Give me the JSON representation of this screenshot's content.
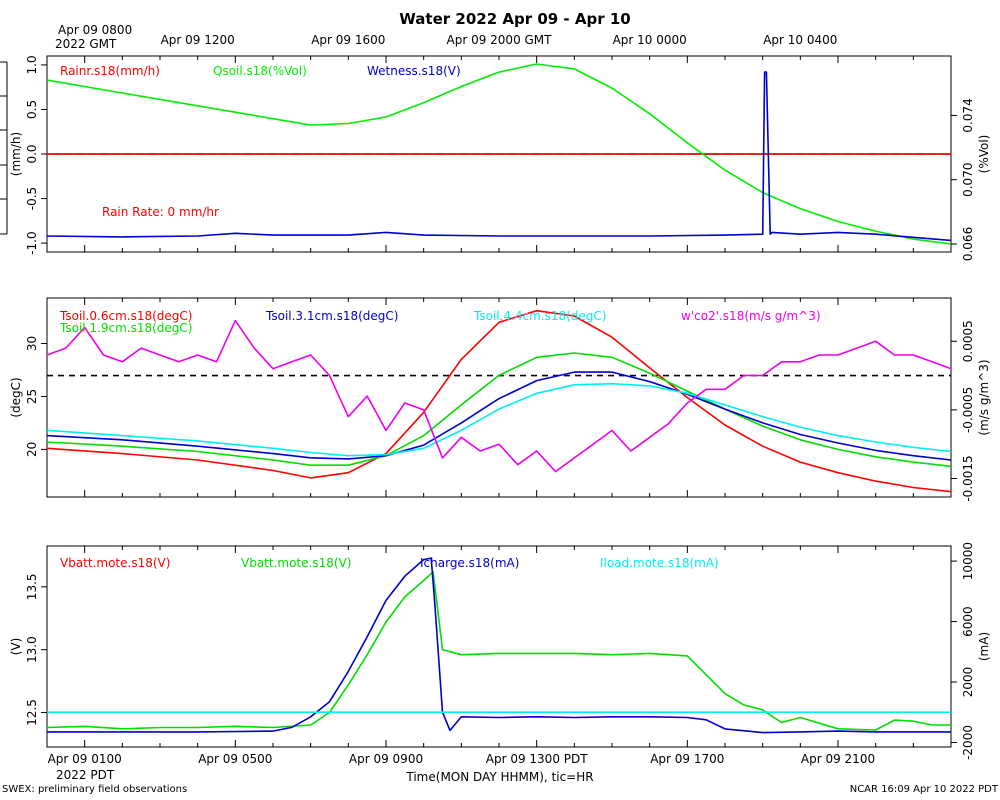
{
  "title": "Water 2022 Apr 09 - Apr 10",
  "top_time_labels": [
    {
      "t": 0,
      "line1": "Apr 09 0800",
      "line2": "2022 GMT"
    },
    {
      "t": 4,
      "line1": "Apr 09 1200",
      "line2": ""
    },
    {
      "t": 8,
      "line1": "Apr 09 1600",
      "line2": ""
    },
    {
      "t": 12,
      "line1": "Apr 09 2000 GMT",
      "line2": ""
    },
    {
      "t": 16,
      "line1": "Apr 10 0000",
      "line2": ""
    },
    {
      "t": 20,
      "line1": "Apr 10 0400",
      "line2": ""
    }
  ],
  "bottom_time_labels": [
    {
      "t": 1,
      "line1": "Apr 09 0100",
      "line2": "2022 PDT"
    },
    {
      "t": 5,
      "line1": "Apr 09 0500",
      "line2": ""
    },
    {
      "t": 9,
      "line1": "Apr 09 0900",
      "line2": ""
    },
    {
      "t": 13,
      "line1": "Apr 09 1300 PDT",
      "line2": ""
    },
    {
      "t": 17,
      "line1": "Apr 09 1700",
      "line2": ""
    },
    {
      "t": 21,
      "line1": "Apr 09 2100",
      "line2": ""
    }
  ],
  "xlabel": "Time(MON DAY HHMM), tic=HR",
  "footer_left": "SWEX: preliminary field observations",
  "footer_right": "NCAR 16:09 Apr 10 2022 PDT",
  "chart_data": [
    {
      "type": "line",
      "panel": "rain-soil-moisture",
      "x_range_hours": [
        0,
        24
      ],
      "left_axis": {
        "label": "(mm/h)",
        "ylim": [
          -1.1,
          1.1
        ],
        "ticks": [
          1.0,
          0.5,
          0.0,
          -0.5,
          -1.0
        ],
        "tick_labels": [
          "1.0",
          "0.5",
          "0.0",
          "-0.5",
          "-1.0"
        ]
      },
      "right_axis": {
        "label": "(%Vol)",
        "ylim": [
          0.0655,
          0.0777
        ],
        "ticks": [
          0.074,
          0.07,
          0.066
        ],
        "tick_labels": [
          "0.074",
          "0.070",
          "0.066"
        ]
      },
      "annotation": "Rain Rate: 0 mm/hr",
      "reference_lines": [
        {
          "axis": "left",
          "value": 0.0,
          "colors": [
            "#ff0000",
            "#000000"
          ]
        }
      ],
      "series": [
        {
          "name": "Rainr.s18(mm/h)",
          "color": "#ff0000",
          "axis": "left",
          "x": [
            0,
            24
          ],
          "values": [
            0.0,
            0.0
          ]
        },
        {
          "name": "Qsoil.s18(%Vol)",
          "color": "#00ee00",
          "axis": "right",
          "x": [
            0,
            2,
            4,
            6,
            7,
            8,
            9,
            10,
            11,
            12,
            13,
            14,
            15,
            16,
            17,
            18,
            19,
            20,
            21,
            22,
            23,
            24
          ],
          "values": [
            0.0762,
            0.0754,
            0.0746,
            0.0738,
            0.0734,
            0.0735,
            0.0739,
            0.0748,
            0.0758,
            0.0767,
            0.0772,
            0.0769,
            0.0757,
            0.0741,
            0.0723,
            0.0706,
            0.0692,
            0.0682,
            0.0674,
            0.0668,
            0.0663,
            0.066
          ]
        },
        {
          "name": "Wetness.s18(V)",
          "color": "#0000cc",
          "axis": "left",
          "x": [
            0,
            2,
            4,
            5,
            6,
            8,
            9,
            10,
            12,
            14,
            16,
            18,
            19.0,
            19.05,
            19.1,
            19.2,
            19.25,
            20,
            21,
            22,
            24
          ],
          "values": [
            -0.92,
            -0.93,
            -0.92,
            -0.89,
            -0.91,
            -0.91,
            -0.88,
            -0.91,
            -0.92,
            -0.92,
            -0.92,
            -0.91,
            -0.9,
            0.92,
            0.92,
            -0.9,
            -0.88,
            -0.9,
            -0.88,
            -0.9,
            -0.97
          ]
        }
      ]
    },
    {
      "type": "line",
      "panel": "soil-temperature-co2",
      "x_range_hours": [
        0,
        24
      ],
      "left_axis": {
        "label": "(degC)",
        "ylim": [
          15.5,
          34.3
        ],
        "ticks": [
          30,
          25,
          20
        ],
        "tick_labels": [
          "30",
          "25",
          "20"
        ]
      },
      "right_axis": {
        "label": "(m/s g/m^3)",
        "ylim": [
          -0.00177,
          0.00113
        ],
        "ticks": [
          0.0005,
          -0.0005,
          -0.0015
        ],
        "tick_labels": [
          "0.0005",
          "-0.0005",
          "-0.0015"
        ]
      },
      "reference_lines": [
        {
          "axis": "right",
          "value": 0.0,
          "colors": [
            "#000000"
          ]
        }
      ],
      "series": [
        {
          "name": "Tsoil.0.6cm.s18(degC)",
          "color": "#ff0000",
          "axis": "left",
          "x": [
            0,
            2,
            4,
            6,
            7,
            8,
            9,
            10,
            11,
            12,
            13,
            14,
            15,
            16,
            17,
            18,
            19,
            20,
            21,
            22,
            23,
            24
          ],
          "values": [
            20.1,
            19.6,
            19.0,
            18.0,
            17.3,
            17.8,
            19.6,
            23.5,
            28.5,
            32.0,
            33.1,
            32.6,
            30.6,
            27.7,
            24.9,
            22.3,
            20.3,
            18.8,
            17.8,
            17.0,
            16.4,
            16.0
          ]
        },
        {
          "name": "Tsoil.1.9cm.s18(degC)",
          "color": "#00dd00",
          "axis": "left",
          "x": [
            0,
            2,
            4,
            6,
            7,
            8,
            9,
            10,
            11,
            12,
            13,
            14,
            15,
            16,
            17,
            18,
            19,
            20,
            21,
            22,
            23,
            24
          ],
          "values": [
            20.7,
            20.3,
            19.8,
            19.0,
            18.5,
            18.5,
            19.4,
            21.3,
            24.2,
            27.0,
            28.7,
            29.1,
            28.7,
            27.2,
            25.5,
            23.8,
            22.2,
            20.9,
            20.0,
            19.3,
            18.8,
            18.4
          ]
        },
        {
          "name": "Tsoil.3.1cm.s18(degC)",
          "color": "#0000cc",
          "axis": "left",
          "x": [
            0,
            2,
            4,
            6,
            7,
            8,
            9,
            10,
            11,
            12,
            13,
            14,
            15,
            16,
            17,
            18,
            19,
            20,
            21,
            22,
            23,
            24
          ],
          "values": [
            21.3,
            20.9,
            20.3,
            19.6,
            19.2,
            19.1,
            19.4,
            20.4,
            22.5,
            24.8,
            26.5,
            27.3,
            27.3,
            26.4,
            25.2,
            23.8,
            22.5,
            21.4,
            20.6,
            19.9,
            19.4,
            19.0
          ]
        },
        {
          "name": "Tsoil.4.4cm.s18(degC)",
          "color": "#00eeee",
          "axis": "left",
          "x": [
            0,
            2,
            4,
            6,
            7,
            8,
            9,
            10,
            11,
            12,
            13,
            14,
            15,
            16,
            17,
            18,
            19,
            20,
            21,
            22,
            23,
            24
          ],
          "values": [
            21.8,
            21.3,
            20.8,
            20.1,
            19.7,
            19.4,
            19.5,
            20.1,
            21.8,
            23.8,
            25.3,
            26.1,
            26.2,
            26.0,
            25.3,
            24.2,
            23.1,
            22.1,
            21.3,
            20.7,
            20.2,
            19.8
          ]
        },
        {
          "name": "w'co2'.s18(m/s g/m^3)",
          "color": "#ee00ee",
          "axis": "right",
          "x": [
            0,
            0.5,
            1,
            1.5,
            2,
            2.5,
            3,
            3.5,
            4,
            4.5,
            5,
            5.5,
            6,
            6.5,
            7,
            7.5,
            8,
            8.5,
            9,
            9.5,
            10,
            10.5,
            11,
            11.5,
            12,
            12.5,
            13,
            13.5,
            14,
            14.5,
            15,
            15.5,
            16,
            16.5,
            17,
            17.5,
            18,
            18.5,
            19,
            19.5,
            20,
            20.5,
            21,
            21.5,
            22,
            22.5,
            23,
            23.5,
            24
          ],
          "values": [
            0.0003,
            0.0004,
            0.0007,
            0.0003,
            0.0002,
            0.0004,
            0.0003,
            0.0002,
            0.0003,
            0.0002,
            0.0008,
            0.0004,
            0.0001,
            0.0002,
            0.0003,
            0.0,
            -0.0006,
            -0.0003,
            -0.0008,
            -0.0004,
            -0.0005,
            -0.0012,
            -0.0009,
            -0.0011,
            -0.001,
            -0.0013,
            -0.0011,
            -0.0014,
            -0.0012,
            -0.001,
            -0.0008,
            -0.0011,
            -0.0009,
            -0.0007,
            -0.0004,
            -0.0002,
            -0.0002,
            0.0,
            0.0,
            0.0002,
            0.0002,
            0.0003,
            0.0003,
            0.0004,
            0.0005,
            0.0003,
            0.0003,
            0.0002,
            0.0001
          ]
        }
      ]
    },
    {
      "type": "line",
      "panel": "battery-power",
      "x_range_hours": [
        0,
        24
      ],
      "left_axis": {
        "label": "(V)",
        "ylim": [
          12.225,
          13.825
        ],
        "ticks": [
          13.5,
          13.0,
          12.5
        ],
        "tick_labels": [
          "13.5",
          "13.0",
          "12.5"
        ]
      },
      "right_axis": {
        "label": "(mA)",
        "ylim": [
          -2300,
          11000
        ],
        "ticks": [
          10000,
          6000,
          2000,
          -2000
        ],
        "tick_labels": [
          "10000",
          "6000",
          "2000",
          "-2000"
        ]
      },
      "reference_lines": [
        {
          "axis": "right",
          "value": 0,
          "colors": [
            "#00eeee",
            "#000000"
          ]
        }
      ],
      "series": [
        {
          "name": "Vbatt.mote.s18(V)",
          "color": "#ff0000",
          "axis": "left",
          "x": [],
          "values": []
        },
        {
          "name": "Vbatt.mote.s18(V)",
          "color": "#00dd00",
          "axis": "left",
          "x": [
            0,
            1,
            2,
            3,
            4,
            5,
            6,
            7,
            7.5,
            8,
            8.5,
            9,
            9.5,
            10,
            10.25,
            10.5,
            11,
            12,
            13,
            14,
            15,
            16,
            17,
            17.5,
            18,
            18.5,
            19,
            19.5,
            20,
            21,
            22,
            22.5,
            23,
            23.5,
            24
          ],
          "values": [
            12.38,
            12.39,
            12.37,
            12.38,
            12.38,
            12.39,
            12.38,
            12.4,
            12.5,
            12.72,
            12.96,
            13.22,
            13.42,
            13.55,
            13.62,
            13.0,
            12.96,
            12.97,
            12.97,
            12.97,
            12.96,
            12.97,
            12.95,
            12.8,
            12.65,
            12.56,
            12.52,
            12.42,
            12.46,
            12.37,
            12.36,
            12.44,
            12.43,
            12.4,
            12.4
          ]
        },
        {
          "name": "Icharge.s18(mA)",
          "color": "#0000cc",
          "axis": "right",
          "x": [
            0,
            2,
            4,
            6,
            6.5,
            7,
            7.5,
            8,
            8.5,
            9,
            9.5,
            10,
            10.2,
            10.3,
            10.5,
            10.7,
            11,
            12,
            13,
            14,
            15,
            16,
            17,
            17.5,
            18,
            19,
            20,
            21,
            22,
            23,
            24
          ],
          "values": [
            -1300,
            -1300,
            -1300,
            -1250,
            -1000,
            -300,
            700,
            2700,
            5000,
            7400,
            9000,
            10100,
            10200,
            7000,
            0,
            -1200,
            -300,
            -350,
            -300,
            -350,
            -300,
            -300,
            -350,
            -500,
            -1100,
            -1350,
            -1300,
            -1250,
            -1300,
            -1300,
            -1300
          ]
        },
        {
          "name": "Iload.mote.s18(mA)",
          "color": "#00eeee",
          "axis": "right",
          "x": [
            0,
            24
          ],
          "values": [
            0,
            0
          ]
        }
      ]
    }
  ]
}
